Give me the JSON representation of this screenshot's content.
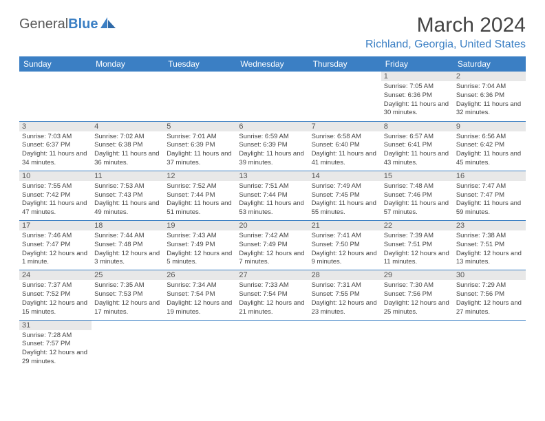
{
  "logo": {
    "text1": "General",
    "text2": "Blue"
  },
  "title": "March 2024",
  "location": "Richland, Georgia, United States",
  "headers": [
    "Sunday",
    "Monday",
    "Tuesday",
    "Wednesday",
    "Thursday",
    "Friday",
    "Saturday"
  ],
  "weeks": [
    [
      null,
      null,
      null,
      null,
      null,
      {
        "n": "1",
        "sr": "7:05 AM",
        "ss": "6:36 PM",
        "d": "11 hours and 30 minutes."
      },
      {
        "n": "2",
        "sr": "7:04 AM",
        "ss": "6:36 PM",
        "d": "11 hours and 32 minutes."
      }
    ],
    [
      {
        "n": "3",
        "sr": "7:03 AM",
        "ss": "6:37 PM",
        "d": "11 hours and 34 minutes."
      },
      {
        "n": "4",
        "sr": "7:02 AM",
        "ss": "6:38 PM",
        "d": "11 hours and 36 minutes."
      },
      {
        "n": "5",
        "sr": "7:01 AM",
        "ss": "6:39 PM",
        "d": "11 hours and 37 minutes."
      },
      {
        "n": "6",
        "sr": "6:59 AM",
        "ss": "6:39 PM",
        "d": "11 hours and 39 minutes."
      },
      {
        "n": "7",
        "sr": "6:58 AM",
        "ss": "6:40 PM",
        "d": "11 hours and 41 minutes."
      },
      {
        "n": "8",
        "sr": "6:57 AM",
        "ss": "6:41 PM",
        "d": "11 hours and 43 minutes."
      },
      {
        "n": "9",
        "sr": "6:56 AM",
        "ss": "6:42 PM",
        "d": "11 hours and 45 minutes."
      }
    ],
    [
      {
        "n": "10",
        "sr": "7:55 AM",
        "ss": "7:42 PM",
        "d": "11 hours and 47 minutes."
      },
      {
        "n": "11",
        "sr": "7:53 AM",
        "ss": "7:43 PM",
        "d": "11 hours and 49 minutes."
      },
      {
        "n": "12",
        "sr": "7:52 AM",
        "ss": "7:44 PM",
        "d": "11 hours and 51 minutes."
      },
      {
        "n": "13",
        "sr": "7:51 AM",
        "ss": "7:44 PM",
        "d": "11 hours and 53 minutes."
      },
      {
        "n": "14",
        "sr": "7:49 AM",
        "ss": "7:45 PM",
        "d": "11 hours and 55 minutes."
      },
      {
        "n": "15",
        "sr": "7:48 AM",
        "ss": "7:46 PM",
        "d": "11 hours and 57 minutes."
      },
      {
        "n": "16",
        "sr": "7:47 AM",
        "ss": "7:47 PM",
        "d": "11 hours and 59 minutes."
      }
    ],
    [
      {
        "n": "17",
        "sr": "7:46 AM",
        "ss": "7:47 PM",
        "d": "12 hours and 1 minute."
      },
      {
        "n": "18",
        "sr": "7:44 AM",
        "ss": "7:48 PM",
        "d": "12 hours and 3 minutes."
      },
      {
        "n": "19",
        "sr": "7:43 AM",
        "ss": "7:49 PM",
        "d": "12 hours and 5 minutes."
      },
      {
        "n": "20",
        "sr": "7:42 AM",
        "ss": "7:49 PM",
        "d": "12 hours and 7 minutes."
      },
      {
        "n": "21",
        "sr": "7:41 AM",
        "ss": "7:50 PM",
        "d": "12 hours and 9 minutes."
      },
      {
        "n": "22",
        "sr": "7:39 AM",
        "ss": "7:51 PM",
        "d": "12 hours and 11 minutes."
      },
      {
        "n": "23",
        "sr": "7:38 AM",
        "ss": "7:51 PM",
        "d": "12 hours and 13 minutes."
      }
    ],
    [
      {
        "n": "24",
        "sr": "7:37 AM",
        "ss": "7:52 PM",
        "d": "12 hours and 15 minutes."
      },
      {
        "n": "25",
        "sr": "7:35 AM",
        "ss": "7:53 PM",
        "d": "12 hours and 17 minutes."
      },
      {
        "n": "26",
        "sr": "7:34 AM",
        "ss": "7:54 PM",
        "d": "12 hours and 19 minutes."
      },
      {
        "n": "27",
        "sr": "7:33 AM",
        "ss": "7:54 PM",
        "d": "12 hours and 21 minutes."
      },
      {
        "n": "28",
        "sr": "7:31 AM",
        "ss": "7:55 PM",
        "d": "12 hours and 23 minutes."
      },
      {
        "n": "29",
        "sr": "7:30 AM",
        "ss": "7:56 PM",
        "d": "12 hours and 25 minutes."
      },
      {
        "n": "30",
        "sr": "7:29 AM",
        "ss": "7:56 PM",
        "d": "12 hours and 27 minutes."
      }
    ],
    [
      {
        "n": "31",
        "sr": "7:28 AM",
        "ss": "7:57 PM",
        "d": "12 hours and 29 minutes."
      },
      null,
      null,
      null,
      null,
      null,
      null
    ]
  ],
  "labels": {
    "sunrise": "Sunrise: ",
    "sunset": "Sunset: ",
    "daylight": "Daylight: "
  }
}
